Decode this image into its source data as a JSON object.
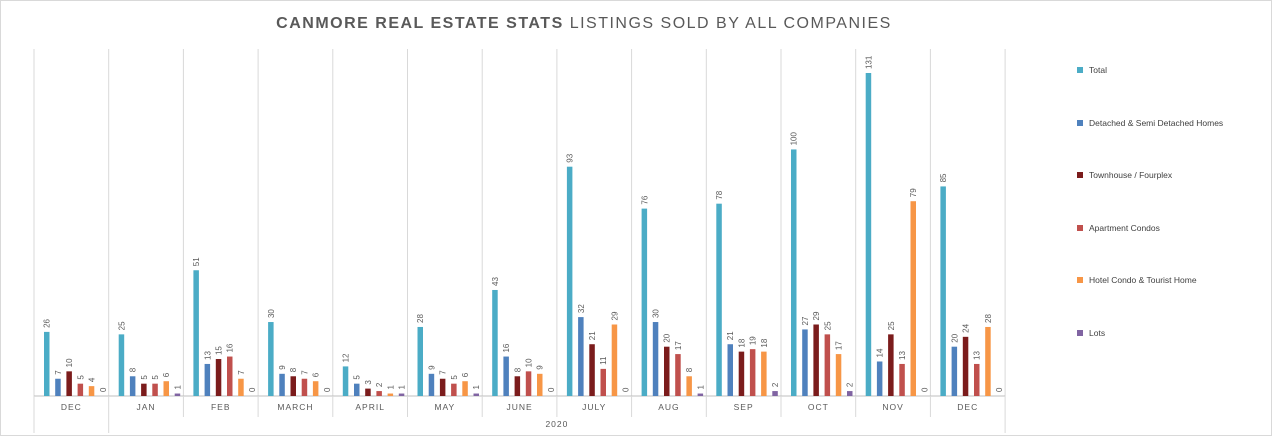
{
  "chart_data": {
    "type": "bar",
    "title": "CANMORE REAL ESTATE STATS",
    "subtitle": "LISTINGS SOLD BY ALL COMPANIES",
    "categories": [
      "DEC",
      "JAN",
      "FEB",
      "MARCH",
      "APRIL",
      "MAY",
      "JUNE",
      "JULY",
      "AUG",
      "SEP",
      "OCT",
      "NOV",
      "DEC"
    ],
    "group_label": "2020",
    "group_start_index": 1,
    "ylim": [
      0,
      131
    ],
    "grid": false,
    "legend_position": "right",
    "series": [
      {
        "name": "Total",
        "color": "#4bacc6",
        "values": [
          26,
          25,
          51,
          30,
          12,
          28,
          43,
          93,
          76,
          78,
          100,
          131,
          85
        ]
      },
      {
        "name": "Detached & Semi Detached Homes",
        "color": "#4f81bd",
        "values": [
          7,
          8,
          13,
          9,
          5,
          9,
          16,
          32,
          30,
          21,
          27,
          14,
          20
        ]
      },
      {
        "name": "Townhouse / Fourplex",
        "color": "#7b1c1c",
        "values": [
          10,
          5,
          15,
          8,
          3,
          7,
          8,
          21,
          20,
          18,
          29,
          25,
          24
        ]
      },
      {
        "name": "Apartment Condos",
        "color": "#c0504d",
        "values": [
          5,
          5,
          16,
          7,
          2,
          5,
          10,
          11,
          17,
          19,
          25,
          13,
          13
        ]
      },
      {
        "name": "Hotel Condo & Tourist Home",
        "color": "#f79646",
        "values": [
          4,
          6,
          7,
          6,
          1,
          6,
          9,
          29,
          8,
          18,
          17,
          79,
          28
        ]
      },
      {
        "name": "Lots",
        "color": "#8064a2",
        "values": [
          0,
          1,
          0,
          0,
          1,
          1,
          0,
          0,
          1,
          2,
          2,
          0,
          0
        ]
      }
    ]
  }
}
